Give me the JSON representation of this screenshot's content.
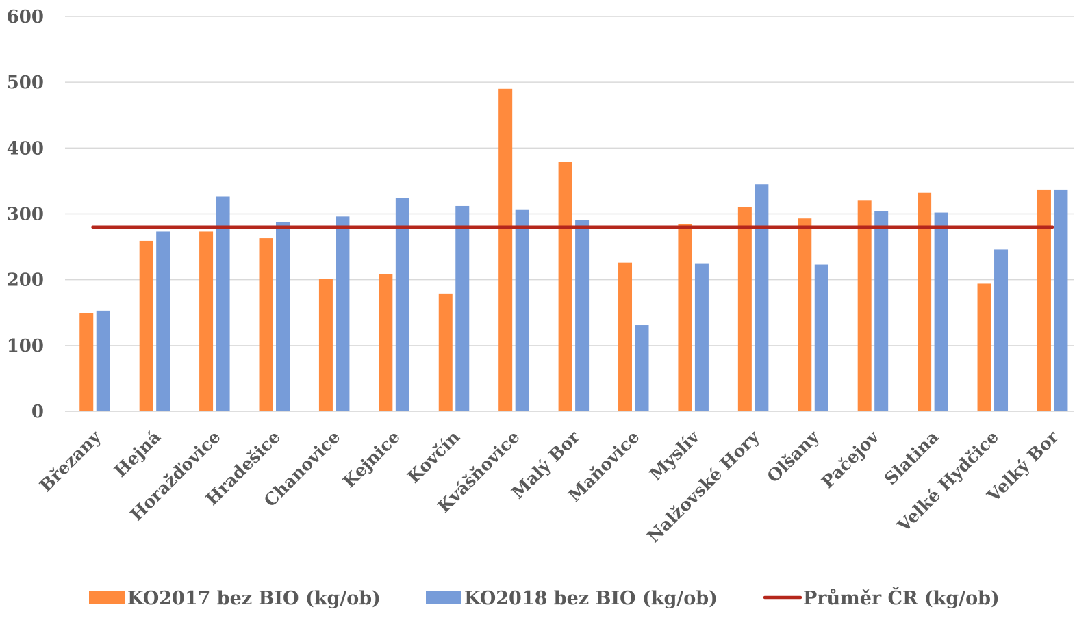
{
  "chart_data": {
    "type": "bar",
    "title": "",
    "xlabel": "",
    "ylabel": "",
    "ylim": [
      0,
      600
    ],
    "yticks": [
      0,
      100,
      200,
      300,
      400,
      500,
      600
    ],
    "grid": true,
    "legend_position": "bottom",
    "categories": [
      "Březany",
      "Hejná",
      "Horažďovice",
      "Hradešice",
      "Chanovice",
      "Kejnice",
      "Kovčín",
      "Kvášňovice",
      "Malý Bor",
      "Maňovice",
      "Myslív",
      "Nalžovské Hory",
      "Olšany",
      "Pačejov",
      "Slatina",
      "Velké Hydčice",
      "Velký Bor"
    ],
    "series": [
      {
        "name": "KO2017 bez BIO (kg/ob)",
        "color": "#FF8A3D",
        "type": "bar",
        "values": [
          149,
          259,
          273,
          263,
          201,
          208,
          179,
          490,
          379,
          226,
          284,
          310,
          293,
          321,
          332,
          194,
          337
        ]
      },
      {
        "name": "KO2018 bez BIO (kg/ob)",
        "color": "#779CD9",
        "type": "bar",
        "values": [
          153,
          273,
          326,
          287,
          296,
          324,
          312,
          306,
          291,
          131,
          224,
          345,
          223,
          304,
          302,
          246,
          337
        ]
      },
      {
        "name": "Průměr ČR (kg/ob)",
        "color": "#B5271C",
        "type": "line",
        "value": 280
      }
    ]
  }
}
